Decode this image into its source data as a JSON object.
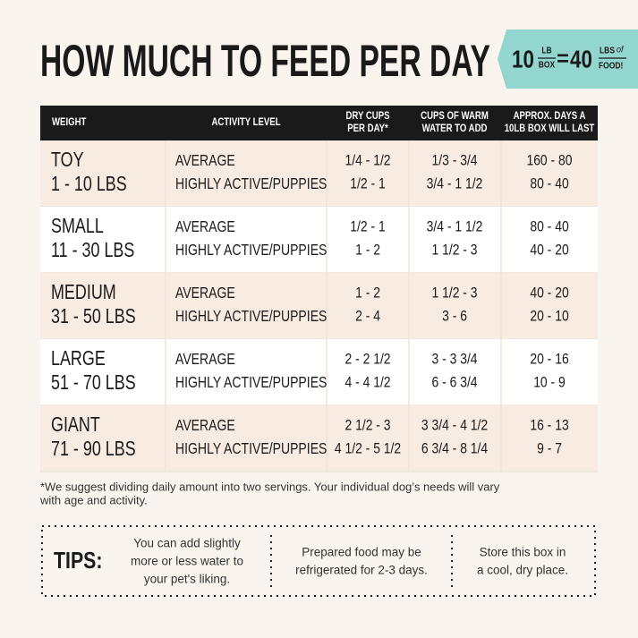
{
  "header": {
    "title": "HOW MUCH TO FEED PER DAY"
  },
  "badge": {
    "left_number": "10",
    "left_unit_top": "LB",
    "left_unit_bottom": "BOX",
    "equals": "=",
    "right_number": "40",
    "right_unit_top": "LBS",
    "right_unit_script": "of",
    "right_unit_bottom": "FOOD!"
  },
  "table": {
    "columns": [
      [
        "WEIGHT"
      ],
      [
        "ACTIVITY LEVEL"
      ],
      [
        "DRY CUPS",
        "PER DAY*"
      ],
      [
        "CUPS OF WARM",
        "WATER TO ADD"
      ],
      [
        "APPROX. DAYS A",
        "10LB BOX WILL LAST"
      ]
    ],
    "rows": [
      {
        "weight": [
          "TOY",
          "1 - 10 LBS"
        ],
        "activity": [
          "AVERAGE",
          "HIGHLY ACTIVE/PUPPIES"
        ],
        "dry_cups": [
          "1/4 - 1/2",
          "1/2 - 1"
        ],
        "water": [
          "1/3 - 3/4",
          "3/4 - 1 1/2"
        ],
        "days": [
          "160 - 80",
          "80 - 40"
        ]
      },
      {
        "weight": [
          "SMALL",
          "11 - 30 LBS"
        ],
        "activity": [
          "AVERAGE",
          "HIGHLY ACTIVE/PUPPIES"
        ],
        "dry_cups": [
          "1/2 - 1",
          "1 - 2"
        ],
        "water": [
          "3/4 - 1 1/2",
          "1 1/2 - 3"
        ],
        "days": [
          "80 - 40",
          "40 - 20"
        ]
      },
      {
        "weight": [
          "MEDIUM",
          "31 - 50 LBS"
        ],
        "activity": [
          "AVERAGE",
          "HIGHLY ACTIVE/PUPPIES"
        ],
        "dry_cups": [
          "1 - 2",
          "2 - 4"
        ],
        "water": [
          "1 1/2 - 3",
          "3 - 6"
        ],
        "days": [
          "40 - 20",
          "20 - 10"
        ]
      },
      {
        "weight": [
          "LARGE",
          "51 - 70 LBS"
        ],
        "activity": [
          "AVERAGE",
          "HIGHLY ACTIVE/PUPPIES"
        ],
        "dry_cups": [
          "2 - 2 1/2",
          "4 - 4 1/2"
        ],
        "water": [
          "3 - 3 3/4",
          "6 - 6 3/4"
        ],
        "days": [
          "20 - 16",
          "10 - 9"
        ]
      },
      {
        "weight": [
          "GIANT",
          "71 - 90 LBS"
        ],
        "activity": [
          "AVERAGE",
          "HIGHLY ACTIVE/PUPPIES"
        ],
        "dry_cups": [
          "2 1/2 - 3",
          "4 1/2 - 5 1/2"
        ],
        "water": [
          "3 3/4 - 4 1/2",
          "6 3/4 - 8 1/4"
        ],
        "days": [
          "16 - 13",
          "9 - 7"
        ]
      }
    ]
  },
  "footnote": [
    "*We suggest dividing daily amount into two servings. Your individual dog’s needs will vary",
    "with age and activity."
  ],
  "tips": {
    "label": "TIPS:",
    "items": [
      [
        "You can add slightly",
        "more or less water to",
        "your pet's liking."
      ],
      [
        "Prepared food may be",
        "refrigerated for 2-3 days."
      ],
      [
        "Store this box in",
        "a cool, dry place."
      ]
    ]
  }
}
